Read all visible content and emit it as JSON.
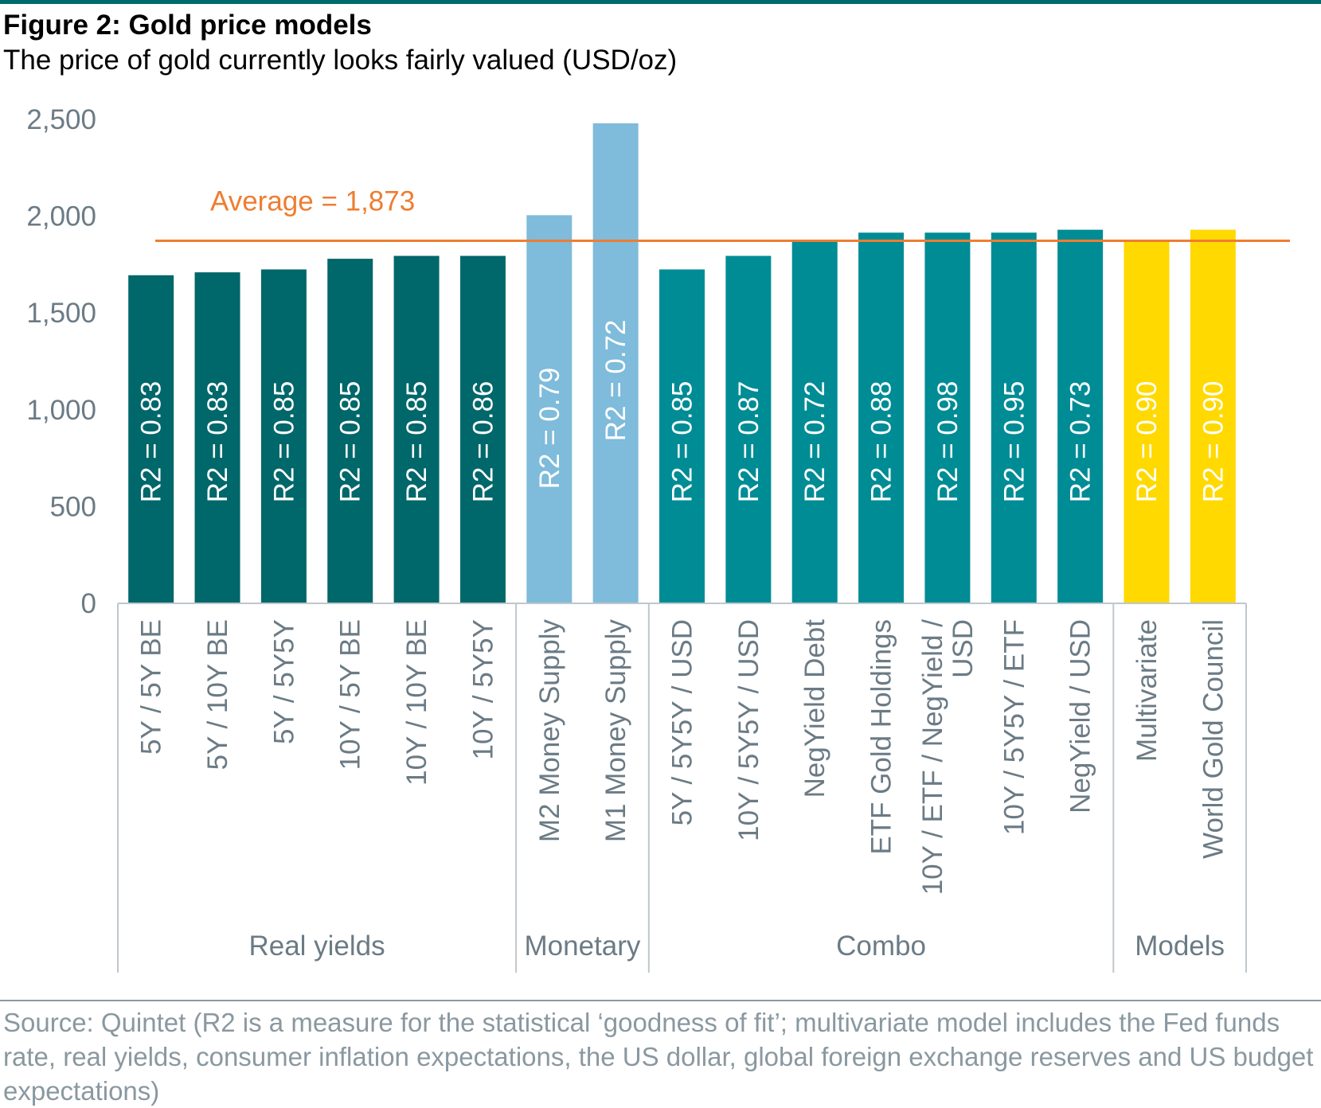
{
  "title": "Figure 2: Gold price models",
  "subtitle": "The price of gold currently looks fairly valued (USD/oz)",
  "source": "Source: Quintet (R2 is a measure for the statistical ‘goodness of fit’; multivariate model includes the Fed funds rate, real yields, consumer inflation expectations, the US dollar, global foreign exchange reserves and US budget expectations)",
  "colors": {
    "real_yields": "#00676A",
    "monetary": "#7FBBDA",
    "combo": "#008C95",
    "models": "#FFD900",
    "average_line": "#EE7D31",
    "axis_text": "#6B7B85"
  },
  "chart_data": {
    "type": "bar",
    "ylim": [
      0,
      2500
    ],
    "yticks": [
      0,
      500,
      1000,
      1500,
      2000,
      2500
    ],
    "ytick_labels": [
      "0",
      "500",
      "1,000",
      "1,500",
      "2,000",
      "2,500"
    ],
    "average": {
      "value": 1873,
      "label": "Average = 1,873"
    },
    "groups": [
      {
        "label": "Real yields",
        "start": 0,
        "end": 5
      },
      {
        "label": "Monetary",
        "start": 6,
        "end": 7
      },
      {
        "label": "Combo",
        "start": 8,
        "end": 14
      },
      {
        "label": "Models",
        "start": 15,
        "end": 16
      }
    ],
    "bars": [
      {
        "category": "5Y / 5Y BE",
        "category_lines": [
          "5Y / 5Y BE"
        ],
        "value": 1695,
        "r2_label": "R2 = 0.83",
        "group": "real_yields"
      },
      {
        "category": "5Y / 10Y BE",
        "category_lines": [
          "5Y / 10Y BE"
        ],
        "value": 1710,
        "r2_label": "R2 = 0.83",
        "group": "real_yields"
      },
      {
        "category": "5Y / 5Y5Y",
        "category_lines": [
          "5Y / 5Y5Y"
        ],
        "value": 1725,
        "r2_label": "R2 = 0.85",
        "group": "real_yields"
      },
      {
        "category": "10Y / 5Y BE",
        "category_lines": [
          "10Y / 5Y BE"
        ],
        "value": 1780,
        "r2_label": "R2 = 0.85",
        "group": "real_yields"
      },
      {
        "category": "10Y / 10Y BE",
        "category_lines": [
          "10Y / 10Y BE"
        ],
        "value": 1795,
        "r2_label": "R2 = 0.85",
        "group": "real_yields"
      },
      {
        "category": "10Y / 5Y5Y",
        "category_lines": [
          "10Y / 5Y5Y"
        ],
        "value": 1795,
        "r2_label": "R2 = 0.86",
        "group": "real_yields"
      },
      {
        "category": "M2 Money Supply",
        "category_lines": [
          "M2 Money Supply"
        ],
        "value": 2005,
        "r2_label": "R2 = 0.79",
        "group": "monetary"
      },
      {
        "category": "M1 Money Supply",
        "category_lines": [
          "M1 Money Supply"
        ],
        "value": 2480,
        "r2_label": "R2 = 0.72",
        "group": "monetary"
      },
      {
        "category": "5Y / 5Y5Y / USD",
        "category_lines": [
          "5Y / 5Y5Y / USD"
        ],
        "value": 1725,
        "r2_label": "R2 = 0.85",
        "group": "combo"
      },
      {
        "category": "10Y / 5Y5Y / USD",
        "category_lines": [
          "10Y / 5Y5Y / USD"
        ],
        "value": 1795,
        "r2_label": "R2 = 0.87",
        "group": "combo"
      },
      {
        "category": "NegYield Debt",
        "category_lines": [
          "NegYield Debt"
        ],
        "value": 1870,
        "r2_label": "R2 = 0.72",
        "group": "combo"
      },
      {
        "category": "ETF Gold Holdings",
        "category_lines": [
          "ETF Gold Holdings"
        ],
        "value": 1915,
        "r2_label": "R2 = 0.88",
        "group": "combo"
      },
      {
        "category": "10Y / ETF / NegYield / USD",
        "category_lines": [
          "10Y / ETF / NegYield /",
          "USD"
        ],
        "value": 1915,
        "r2_label": "R2 = 0.98",
        "group": "combo"
      },
      {
        "category": "10Y / 5Y5Y / ETF",
        "category_lines": [
          "10Y / 5Y5Y / ETF"
        ],
        "value": 1915,
        "r2_label": "R2 = 0.95",
        "group": "combo"
      },
      {
        "category": "NegYield / USD",
        "category_lines": [
          "NegYield / USD"
        ],
        "value": 1930,
        "r2_label": "R2 = 0.73",
        "group": "combo"
      },
      {
        "category": "Multivariate",
        "category_lines": [
          "Multivariate"
        ],
        "value": 1870,
        "r2_label": "R2 = 0.90",
        "group": "models"
      },
      {
        "category": "World Gold Council",
        "category_lines": [
          "World Gold Council"
        ],
        "value": 1930,
        "r2_label": "R2 = 0.90",
        "group": "models"
      }
    ]
  }
}
